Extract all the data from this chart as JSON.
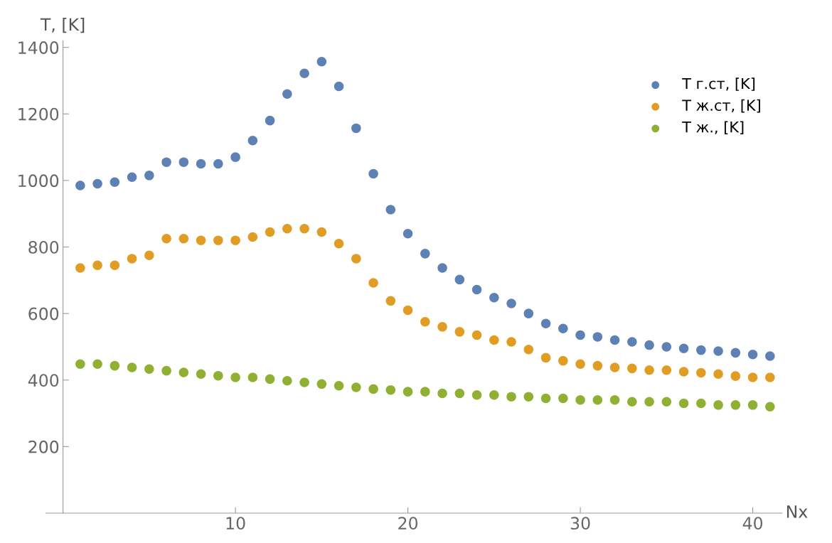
{
  "chart_data": {
    "type": "scatter",
    "xlabel": "Nx",
    "ylabel": "T, [K]",
    "marker": "circle",
    "grid": false,
    "legend": "top right",
    "x": [
      1,
      2,
      3,
      4,
      5,
      6,
      7,
      8,
      9,
      10,
      11,
      12,
      13,
      14,
      15,
      16,
      17,
      18,
      19,
      20,
      21,
      22,
      23,
      24,
      25,
      26,
      27,
      28,
      29,
      30,
      31,
      32,
      33,
      34,
      35,
      36,
      37,
      38,
      39,
      40,
      41
    ],
    "xlim": [
      -1,
      41.7
    ],
    "ylim": [
      0,
      1420
    ],
    "xticks": [
      10,
      20,
      30,
      40
    ],
    "yticks": [
      200,
      400,
      600,
      800,
      1000,
      1200,
      1400
    ],
    "series": [
      {
        "name": "T г.ст, [K]",
        "color": "#5e81b5",
        "values": [
          985,
          990,
          995,
          1010,
          1015,
          1055,
          1055,
          1050,
          1050,
          1070,
          1120,
          1180,
          1260,
          1322,
          1357,
          1283,
          1157,
          1020,
          912,
          840,
          780,
          737,
          702,
          672,
          648,
          630,
          600,
          570,
          555,
          535,
          530,
          520,
          515,
          505,
          500,
          495,
          490,
          487,
          482,
          477,
          472
        ]
      },
      {
        "name": "T ж.ст, [K]",
        "color": "#e19c24",
        "values": [
          737,
          745,
          745,
          765,
          775,
          825,
          825,
          820,
          820,
          820,
          830,
          845,
          855,
          855,
          845,
          810,
          765,
          692,
          638,
          610,
          575,
          560,
          545,
          535,
          520,
          515,
          492,
          467,
          458,
          448,
          443,
          438,
          435,
          430,
          430,
          425,
          422,
          418,
          412,
          408,
          408
        ]
      },
      {
        "name": "T ж., [K]",
        "color": "#8fb032",
        "values": [
          448,
          448,
          443,
          438,
          433,
          428,
          423,
          418,
          413,
          408,
          408,
          403,
          398,
          393,
          388,
          383,
          378,
          373,
          370,
          365,
          365,
          360,
          360,
          355,
          355,
          350,
          350,
          345,
          345,
          340,
          340,
          340,
          335,
          335,
          335,
          330,
          330,
          325,
          325,
          325,
          320
        ]
      }
    ]
  }
}
